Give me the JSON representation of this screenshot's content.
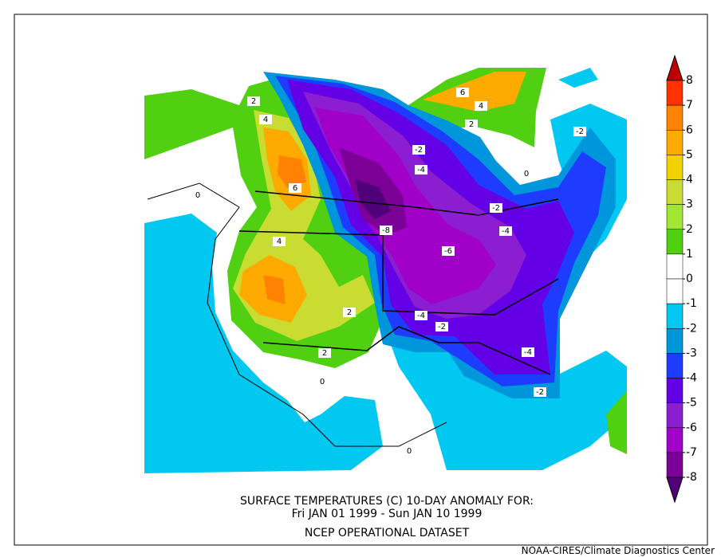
{
  "title_lines": [
    "SURFACE TEMPERATURES (C)   10-DAY ANOMALY FOR:",
    "Fri JAN 01 1999 - Sun JAN 10 1999",
    "NCEP OPERATIONAL DATASET"
  ],
  "credit": "NOAA-CIRES/Climate Diagnostics Center",
  "colorbar": {
    "levels": [
      8,
      7,
      6,
      5,
      4,
      3,
      2,
      1,
      0,
      -1,
      -2,
      -3,
      -4,
      -5,
      -6,
      -7,
      -8
    ],
    "colors": [
      "#c00000",
      "#ff3200",
      "#ff8200",
      "#ffaa00",
      "#f0d200",
      "#c8dc32",
      "#a0e632",
      "#50d010",
      "#ffffff",
      "#ffffff",
      "#00c8f0",
      "#0096dc",
      "#1e3cff",
      "#6400e6",
      "#8c1ed2",
      "#a000c8",
      "#7a0096",
      "#500078"
    ]
  },
  "contour_labels": [
    2,
    4,
    6,
    4,
    2,
    2,
    0,
    0,
    0,
    0,
    -2,
    -4,
    -2,
    -8,
    -6,
    -4,
    -4,
    -2,
    -4,
    -2,
    -2,
    6,
    4,
    2
  ]
}
